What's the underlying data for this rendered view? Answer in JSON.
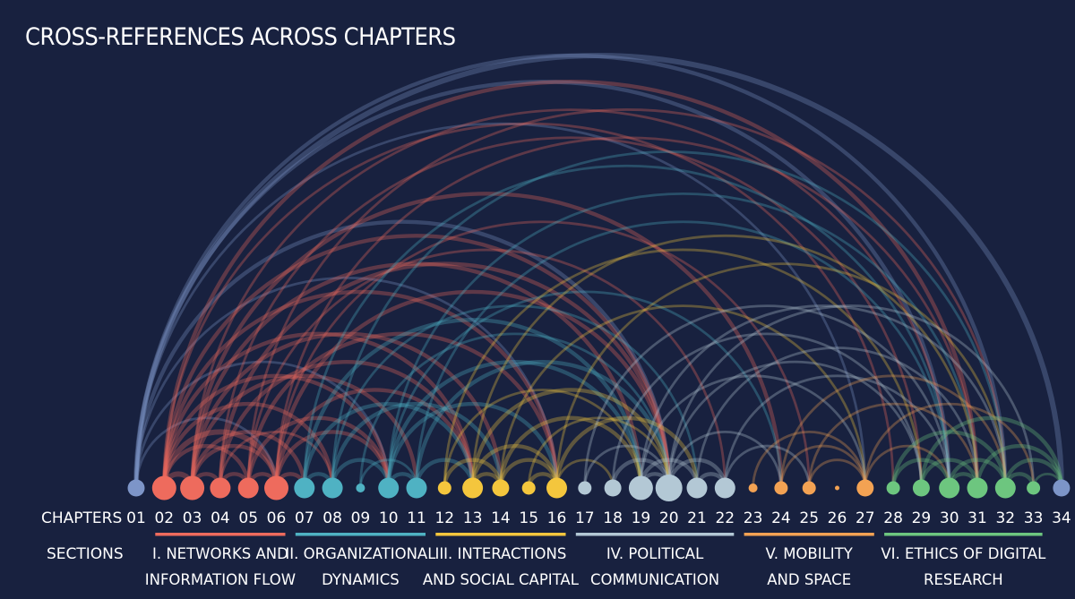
{
  "title": "CROSS-REFERENCES ACROSS CHAPTERS",
  "row_labels": {
    "chapters": "CHAPTERS",
    "sections": "SECTIONS"
  },
  "colors": {
    "background": "#18213f",
    "outer": "#7d95c8",
    "networks": "#ee6b5d",
    "organizational": "#4fb2c3",
    "interactions": "#f4c63d",
    "political": "#b3c8d5",
    "mobility": "#f3a253",
    "ethics": "#6dc67f"
  },
  "chapters": [
    {
      "label": "01",
      "color": "outer",
      "size": 3
    },
    {
      "label": "02",
      "color": "networks",
      "size": 5
    },
    {
      "label": "03",
      "color": "networks",
      "size": 5
    },
    {
      "label": "04",
      "color": "networks",
      "size": 4
    },
    {
      "label": "05",
      "color": "networks",
      "size": 4
    },
    {
      "label": "06",
      "color": "networks",
      "size": 5
    },
    {
      "label": "07",
      "color": "organizational",
      "size": 4
    },
    {
      "label": "08",
      "color": "organizational",
      "size": 4
    },
    {
      "label": "09",
      "color": "organizational",
      "size": 1
    },
    {
      "label": "10",
      "color": "organizational",
      "size": 4
    },
    {
      "label": "11",
      "color": "organizational",
      "size": 4
    },
    {
      "label": "12",
      "color": "interactions",
      "size": 2
    },
    {
      "label": "13",
      "color": "interactions",
      "size": 4
    },
    {
      "label": "14",
      "color": "interactions",
      "size": 3
    },
    {
      "label": "15",
      "color": "interactions",
      "size": 2
    },
    {
      "label": "16",
      "color": "interactions",
      "size": 4
    },
    {
      "label": "17",
      "color": "political",
      "size": 2
    },
    {
      "label": "18",
      "color": "political",
      "size": 3
    },
    {
      "label": "19",
      "color": "political",
      "size": 5
    },
    {
      "label": "20",
      "color": "political",
      "size": 6
    },
    {
      "label": "21",
      "color": "political",
      "size": 4
    },
    {
      "label": "22",
      "color": "political",
      "size": 4
    },
    {
      "label": "23",
      "color": "mobility",
      "size": 1
    },
    {
      "label": "24",
      "color": "mobility",
      "size": 2
    },
    {
      "label": "25",
      "color": "mobility",
      "size": 2
    },
    {
      "label": "26",
      "color": "mobility",
      "size": 0
    },
    {
      "label": "27",
      "color": "mobility",
      "size": 3
    },
    {
      "label": "28",
      "color": "ethics",
      "size": 2
    },
    {
      "label": "29",
      "color": "ethics",
      "size": 3
    },
    {
      "label": "30",
      "color": "ethics",
      "size": 4
    },
    {
      "label": "31",
      "color": "ethics",
      "size": 4
    },
    {
      "label": "32",
      "color": "ethics",
      "size": 4
    },
    {
      "label": "33",
      "color": "ethics",
      "size": 2
    },
    {
      "label": "34",
      "color": "outer",
      "size": 3
    }
  ],
  "sections": [
    {
      "lines": [
        "I. NETWORKS AND",
        "INFORMATION FLOW"
      ],
      "color": "networks",
      "first": 2,
      "last": 6
    },
    {
      "lines": [
        "II. ORGANIZATIONAL",
        "DYNAMICS"
      ],
      "color": "organizational",
      "first": 7,
      "last": 11
    },
    {
      "lines": [
        "III. INTERACTIONS",
        "AND SOCIAL CAPITAL"
      ],
      "color": "interactions",
      "first": 12,
      "last": 16
    },
    {
      "lines": [
        "IV. POLITICAL",
        "COMMUNICATION"
      ],
      "color": "political",
      "first": 17,
      "last": 22
    },
    {
      "lines": [
        "V. MOBILITY",
        "AND SPACE"
      ],
      "color": "mobility",
      "first": 23,
      "last": 27
    },
    {
      "lines": [
        "VI. ETHICS OF DIGITAL",
        "RESEARCH"
      ],
      "color": "ethics",
      "first": 28,
      "last": 33
    }
  ],
  "links": [
    {
      "from": 1,
      "to": 34,
      "weight": 3
    },
    {
      "from": 1,
      "to": 32,
      "weight": 2
    },
    {
      "from": 1,
      "to": 30,
      "weight": 2
    },
    {
      "from": 1,
      "to": 27,
      "weight": 1
    },
    {
      "from": 1,
      "to": 20,
      "weight": 2
    },
    {
      "from": 1,
      "to": 16,
      "weight": 1
    },
    {
      "from": 1,
      "to": 10,
      "weight": 1
    },
    {
      "from": 1,
      "to": 6,
      "weight": 1
    },
    {
      "from": 2,
      "to": 31,
      "weight": 2
    },
    {
      "from": 2,
      "to": 28,
      "weight": 1
    },
    {
      "from": 2,
      "to": 20,
      "weight": 2
    },
    {
      "from": 2,
      "to": 16,
      "weight": 2
    },
    {
      "from": 2,
      "to": 13,
      "weight": 2
    },
    {
      "from": 2,
      "to": 10,
      "weight": 2
    },
    {
      "from": 2,
      "to": 8,
      "weight": 2
    },
    {
      "from": 2,
      "to": 6,
      "weight": 3
    },
    {
      "from": 2,
      "to": 5,
      "weight": 2
    },
    {
      "from": 2,
      "to": 3,
      "weight": 3
    },
    {
      "from": 3,
      "to": 30,
      "weight": 1
    },
    {
      "from": 3,
      "to": 24,
      "weight": 2
    },
    {
      "from": 3,
      "to": 19,
      "weight": 2
    },
    {
      "from": 3,
      "to": 14,
      "weight": 2
    },
    {
      "from": 3,
      "to": 11,
      "weight": 2
    },
    {
      "from": 3,
      "to": 7,
      "weight": 2
    },
    {
      "from": 3,
      "to": 6,
      "weight": 2
    },
    {
      "from": 3,
      "to": 4,
      "weight": 2
    },
    {
      "from": 4,
      "to": 29,
      "weight": 1
    },
    {
      "from": 4,
      "to": 20,
      "weight": 2
    },
    {
      "from": 4,
      "to": 13,
      "weight": 2
    },
    {
      "from": 4,
      "to": 8,
      "weight": 1
    },
    {
      "from": 4,
      "to": 5,
      "weight": 2
    },
    {
      "from": 5,
      "to": 32,
      "weight": 1
    },
    {
      "from": 5,
      "to": 22,
      "weight": 1
    },
    {
      "from": 5,
      "to": 16,
      "weight": 2
    },
    {
      "from": 5,
      "to": 10,
      "weight": 2
    },
    {
      "from": 5,
      "to": 6,
      "weight": 2
    },
    {
      "from": 6,
      "to": 31,
      "weight": 1
    },
    {
      "from": 6,
      "to": 25,
      "weight": 1
    },
    {
      "from": 6,
      "to": 20,
      "weight": 2
    },
    {
      "from": 6,
      "to": 13,
      "weight": 2
    },
    {
      "from": 6,
      "to": 10,
      "weight": 2
    },
    {
      "from": 6,
      "to": 7,
      "weight": 2
    },
    {
      "from": 7,
      "to": 30,
      "weight": 1
    },
    {
      "from": 7,
      "to": 19,
      "weight": 2
    },
    {
      "from": 7,
      "to": 13,
      "weight": 2
    },
    {
      "from": 7,
      "to": 8,
      "weight": 2
    },
    {
      "from": 8,
      "to": 32,
      "weight": 1
    },
    {
      "from": 8,
      "to": 21,
      "weight": 1
    },
    {
      "from": 8,
      "to": 14,
      "weight": 2
    },
    {
      "from": 8,
      "to": 10,
      "weight": 2
    },
    {
      "from": 9,
      "to": 20,
      "weight": 1
    },
    {
      "from": 9,
      "to": 11,
      "weight": 1
    },
    {
      "from": 10,
      "to": 31,
      "weight": 1
    },
    {
      "from": 10,
      "to": 24,
      "weight": 1
    },
    {
      "from": 10,
      "to": 19,
      "weight": 2
    },
    {
      "from": 10,
      "to": 16,
      "weight": 2
    },
    {
      "from": 10,
      "to": 11,
      "weight": 2
    },
    {
      "from": 11,
      "to": 30,
      "weight": 1
    },
    {
      "from": 11,
      "to": 20,
      "weight": 2
    },
    {
      "from": 11,
      "to": 13,
      "weight": 2
    },
    {
      "from": 12,
      "to": 29,
      "weight": 1
    },
    {
      "from": 12,
      "to": 19,
      "weight": 1
    },
    {
      "from": 12,
      "to": 14,
      "weight": 2
    },
    {
      "from": 13,
      "to": 31,
      "weight": 1
    },
    {
      "from": 13,
      "to": 20,
      "weight": 2
    },
    {
      "from": 13,
      "to": 16,
      "weight": 2
    },
    {
      "from": 13,
      "to": 14,
      "weight": 2
    },
    {
      "from": 14,
      "to": 27,
      "weight": 1
    },
    {
      "from": 14,
      "to": 19,
      "weight": 2
    },
    {
      "from": 14,
      "to": 16,
      "weight": 2
    },
    {
      "from": 15,
      "to": 20,
      "weight": 1
    },
    {
      "from": 15,
      "to": 16,
      "weight": 2
    },
    {
      "from": 16,
      "to": 32,
      "weight": 1
    },
    {
      "from": 16,
      "to": 21,
      "weight": 2
    },
    {
      "from": 16,
      "to": 18,
      "weight": 1
    },
    {
      "from": 17,
      "to": 30,
      "weight": 1
    },
    {
      "from": 17,
      "to": 20,
      "weight": 1
    },
    {
      "from": 18,
      "to": 29,
      "weight": 1
    },
    {
      "from": 18,
      "to": 20,
      "weight": 2
    },
    {
      "from": 19,
      "to": 32,
      "weight": 1
    },
    {
      "from": 19,
      "to": 27,
      "weight": 1
    },
    {
      "from": 19,
      "to": 21,
      "weight": 2
    },
    {
      "from": 19,
      "to": 20,
      "weight": 2
    },
    {
      "from": 20,
      "to": 33,
      "weight": 1
    },
    {
      "from": 20,
      "to": 29,
      "weight": 1
    },
    {
      "from": 20,
      "to": 24,
      "weight": 1
    },
    {
      "from": 20,
      "to": 22,
      "weight": 2
    },
    {
      "from": 21,
      "to": 31,
      "weight": 1
    },
    {
      "from": 21,
      "to": 22,
      "weight": 2
    },
    {
      "from": 22,
      "to": 30,
      "weight": 1
    },
    {
      "from": 22,
      "to": 25,
      "weight": 1
    },
    {
      "from": 23,
      "to": 27,
      "weight": 1
    },
    {
      "from": 24,
      "to": 32,
      "weight": 1
    },
    {
      "from": 24,
      "to": 27,
      "weight": 1
    },
    {
      "from": 25,
      "to": 31,
      "weight": 1
    },
    {
      "from": 25,
      "to": 27,
      "weight": 1
    },
    {
      "from": 27,
      "to": 33,
      "weight": 1
    },
    {
      "from": 27,
      "to": 30,
      "weight": 1
    },
    {
      "from": 28,
      "to": 32,
      "weight": 2
    },
    {
      "from": 28,
      "to": 30,
      "weight": 2
    },
    {
      "from": 29,
      "to": 34,
      "weight": 2
    },
    {
      "from": 29,
      "to": 31,
      "weight": 2
    },
    {
      "from": 30,
      "to": 32,
      "weight": 2
    },
    {
      "from": 30,
      "to": 31,
      "weight": 2
    },
    {
      "from": 31,
      "to": 34,
      "weight": 2
    },
    {
      "from": 32,
      "to": 34,
      "weight": 2
    },
    {
      "from": 32,
      "to": 33,
      "weight": 2
    },
    {
      "from": 33,
      "to": 34,
      "weight": 1
    }
  ]
}
